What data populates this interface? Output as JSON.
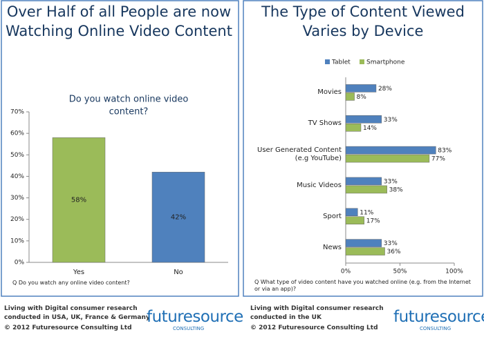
{
  "chart_data": [
    {
      "type": "bar",
      "title": [
        "Over Half of all People are now",
        "Watching Online Video Content"
      ],
      "subtitle": [
        "Do you watch online video",
        "content?"
      ],
      "note": "Q  Do you watch any online video content?",
      "categories": [
        "Yes",
        "No"
      ],
      "values": [
        58,
        42
      ],
      "value_labels": [
        "58%",
        "42%"
      ],
      "colors": [
        "#9bbb59",
        "#4f81bd"
      ],
      "ylim": [
        0,
        70
      ],
      "yticks": [
        {
          "value": 0,
          "label": "0%"
        },
        {
          "value": 10,
          "label": "10%"
        },
        {
          "value": 20,
          "label": "20%"
        },
        {
          "value": 30,
          "label": "30%"
        },
        {
          "value": 40,
          "label": "40%"
        },
        {
          "value": 50,
          "label": "50%"
        },
        {
          "value": 60,
          "label": "60%"
        },
        {
          "value": 70,
          "label": "70%"
        }
      ]
    },
    {
      "type": "hbar",
      "title": [
        "The Type of Content Viewed",
        "Varies by Device"
      ],
      "note": "Q What type of video content have you watched online  (e.g. from the Internet or via an app)?",
      "categories": [
        "Movies",
        "TV Shows",
        "User Generated Content (e.g YouTube)",
        "Music Videos",
        "Sport",
        "News"
      ],
      "series": [
        {
          "name": "Tablet",
          "color": "#4f81bd",
          "values": [
            28,
            33,
            83,
            33,
            11,
            33
          ],
          "value_labels": [
            "28%",
            "33%",
            "83%",
            "33%",
            "11%",
            "33%"
          ]
        },
        {
          "name": "Smartphone",
          "color": "#9bbb59",
          "values": [
            8,
            14,
            77,
            38,
            17,
            36
          ],
          "value_labels": [
            "8%",
            "14%",
            "77%",
            "38%",
            "17%",
            "36%"
          ]
        }
      ],
      "xlim": [
        0,
        100
      ],
      "xticks": [
        {
          "value": 0,
          "label": "0%"
        },
        {
          "value": 50,
          "label": "50%"
        },
        {
          "value": 100,
          "label": "100%"
        }
      ],
      "legend": "top"
    }
  ],
  "footers": [
    [
      "Living with Digital consumer research",
      "conducted in USA, UK, France & Germany",
      "© 2012 Futuresource Consulting Ltd"
    ],
    [
      "Living with Digital consumer research",
      "conducted in the UK",
      "© 2012 Futuresource Consulting Ltd"
    ]
  ],
  "logo": {
    "name": "futuresource",
    "sub": "CONSULTING"
  }
}
